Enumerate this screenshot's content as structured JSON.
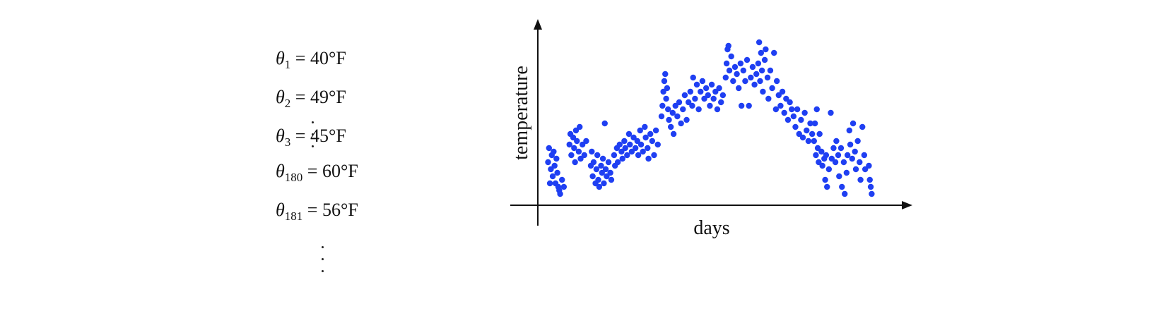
{
  "equations": [
    {
      "symbol": "θ",
      "subscript": "1",
      "value": "= 40°F"
    },
    {
      "symbol": "θ",
      "subscript": "2",
      "value": "= 49°F"
    },
    {
      "symbol": "θ",
      "subscript": "3",
      "value": "= 45°F"
    },
    {
      "symbol": "θ",
      "subscript": "180",
      "value": "= 60°F"
    },
    {
      "symbol": "θ",
      "subscript": "181",
      "value": "= 56°F"
    }
  ],
  "chart_data": {
    "type": "scatter",
    "title": "",
    "xlabel": "days",
    "ylabel": "temperature",
    "ticks": false,
    "grid": false,
    "legend": "none",
    "x_unit": "day",
    "y_unit": "°F",
    "xlim": [
      0,
      380
    ],
    "ylim": [
      30,
      80
    ],
    "color": "#1f3ff2",
    "points": [
      [
        11,
        42
      ],
      [
        12,
        46
      ],
      [
        13,
        36
      ],
      [
        14,
        40
      ],
      [
        15,
        44
      ],
      [
        16,
        38
      ],
      [
        17,
        45
      ],
      [
        18,
        41
      ],
      [
        19,
        36
      ],
      [
        20,
        43
      ],
      [
        21,
        39
      ],
      [
        22,
        35
      ],
      [
        23,
        34
      ],
      [
        24,
        33
      ],
      [
        26,
        37
      ],
      [
        28,
        35
      ],
      [
        34,
        47
      ],
      [
        35,
        50
      ],
      [
        36,
        44
      ],
      [
        38,
        49
      ],
      [
        39,
        46
      ],
      [
        40,
        42
      ],
      [
        41,
        51
      ],
      [
        42,
        48
      ],
      [
        44,
        45
      ],
      [
        45,
        52
      ],
      [
        46,
        43
      ],
      [
        48,
        47
      ],
      [
        50,
        44
      ],
      [
        52,
        48
      ],
      [
        57,
        41
      ],
      [
        58,
        45
      ],
      [
        59,
        38
      ],
      [
        60,
        42
      ],
      [
        62,
        36
      ],
      [
        63,
        40
      ],
      [
        64,
        44
      ],
      [
        65,
        37
      ],
      [
        66,
        35
      ],
      [
        68,
        41
      ],
      [
        69,
        39
      ],
      [
        70,
        43
      ],
      [
        71,
        36
      ],
      [
        72,
        53
      ],
      [
        73,
        40
      ],
      [
        74,
        38
      ],
      [
        76,
        42
      ],
      [
        78,
        39
      ],
      [
        79,
        37
      ],
      [
        82,
        44
      ],
      [
        83,
        41
      ],
      [
        85,
        46
      ],
      [
        86,
        42
      ],
      [
        88,
        47
      ],
      [
        90,
        45
      ],
      [
        91,
        43
      ],
      [
        93,
        48
      ],
      [
        94,
        46
      ],
      [
        96,
        44
      ],
      [
        98,
        50
      ],
      [
        99,
        47
      ],
      [
        101,
        45
      ],
      [
        103,
        49
      ],
      [
        105,
        46
      ],
      [
        107,
        48
      ],
      [
        108,
        44
      ],
      [
        110,
        51
      ],
      [
        111,
        47
      ],
      [
        113,
        45
      ],
      [
        115,
        52
      ],
      [
        116,
        49
      ],
      [
        118,
        46
      ],
      [
        119,
        43
      ],
      [
        121,
        50
      ],
      [
        123,
        48
      ],
      [
        125,
        44
      ],
      [
        127,
        51
      ],
      [
        129,
        47
      ],
      [
        133,
        55
      ],
      [
        134,
        58
      ],
      [
        135,
        62
      ],
      [
        136,
        65
      ],
      [
        137,
        67
      ],
      [
        138,
        60
      ],
      [
        139,
        63
      ],
      [
        140,
        57
      ],
      [
        141,
        54
      ],
      [
        143,
        52
      ],
      [
        145,
        56
      ],
      [
        146,
        50
      ],
      [
        148,
        58
      ],
      [
        150,
        55
      ],
      [
        152,
        59
      ],
      [
        154,
        53
      ],
      [
        156,
        57
      ],
      [
        158,
        61
      ],
      [
        160,
        54
      ],
      [
        162,
        59
      ],
      [
        164,
        62
      ],
      [
        166,
        58
      ],
      [
        167,
        66
      ],
      [
        169,
        60
      ],
      [
        171,
        64
      ],
      [
        173,
        57
      ],
      [
        175,
        62
      ],
      [
        177,
        65
      ],
      [
        179,
        60
      ],
      [
        181,
        63
      ],
      [
        183,
        61
      ],
      [
        185,
        58
      ],
      [
        187,
        64
      ],
      [
        189,
        60
      ],
      [
        191,
        62
      ],
      [
        193,
        57
      ],
      [
        195,
        63
      ],
      [
        197,
        59
      ],
      [
        199,
        61
      ],
      [
        202,
        66
      ],
      [
        203,
        70
      ],
      [
        204,
        74
      ],
      [
        205,
        75
      ],
      [
        206,
        68
      ],
      [
        208,
        72
      ],
      [
        210,
        65
      ],
      [
        212,
        69
      ],
      [
        214,
        67
      ],
      [
        216,
        63
      ],
      [
        218,
        70
      ],
      [
        219,
        58
      ],
      [
        221,
        68
      ],
      [
        223,
        65
      ],
      [
        225,
        71
      ],
      [
        227,
        58
      ],
      [
        229,
        66
      ],
      [
        231,
        69
      ],
      [
        233,
        64
      ],
      [
        235,
        67
      ],
      [
        237,
        70
      ],
      [
        238,
        76
      ],
      [
        239,
        65
      ],
      [
        240,
        73
      ],
      [
        241,
        68
      ],
      [
        242,
        62
      ],
      [
        244,
        71
      ],
      [
        245,
        74
      ],
      [
        247,
        66
      ],
      [
        248,
        60
      ],
      [
        250,
        68
      ],
      [
        252,
        63
      ],
      [
        254,
        73
      ],
      [
        256,
        57
      ],
      [
        257,
        65
      ],
      [
        259,
        61
      ],
      [
        261,
        58
      ],
      [
        263,
        62
      ],
      [
        265,
        56
      ],
      [
        267,
        60
      ],
      [
        269,
        54
      ],
      [
        271,
        59
      ],
      [
        273,
        57
      ],
      [
        275,
        55
      ],
      [
        277,
        52
      ],
      [
        279,
        57
      ],
      [
        281,
        50
      ],
      [
        283,
        54
      ],
      [
        285,
        49
      ],
      [
        287,
        56
      ],
      [
        289,
        51
      ],
      [
        291,
        48
      ],
      [
        293,
        53
      ],
      [
        295,
        50
      ],
      [
        297,
        48
      ],
      [
        298,
        53
      ],
      [
        299,
        44
      ],
      [
        300,
        57
      ],
      [
        301,
        46
      ],
      [
        302,
        42
      ],
      [
        303,
        50
      ],
      [
        305,
        45
      ],
      [
        306,
        41
      ],
      [
        308,
        43
      ],
      [
        309,
        37
      ],
      [
        310,
        44
      ],
      [
        311,
        35
      ],
      [
        313,
        40
      ],
      [
        315,
        56
      ],
      [
        316,
        43
      ],
      [
        318,
        46
      ],
      [
        320,
        42
      ],
      [
        321,
        48
      ],
      [
        323,
        44
      ],
      [
        324,
        38
      ],
      [
        326,
        46
      ],
      [
        327,
        35
      ],
      [
        329,
        42
      ],
      [
        330,
        33
      ],
      [
        332,
        39
      ],
      [
        333,
        44
      ],
      [
        335,
        51
      ],
      [
        336,
        47
      ],
      [
        338,
        43
      ],
      [
        339,
        53
      ],
      [
        341,
        45
      ],
      [
        342,
        40
      ],
      [
        344,
        48
      ],
      [
        346,
        42
      ],
      [
        347,
        37
      ],
      [
        349,
        52
      ],
      [
        351,
        44
      ],
      [
        352,
        40
      ],
      [
        356,
        41
      ],
      [
        357,
        37
      ],
      [
        358,
        35
      ],
      [
        359,
        33
      ]
    ]
  }
}
